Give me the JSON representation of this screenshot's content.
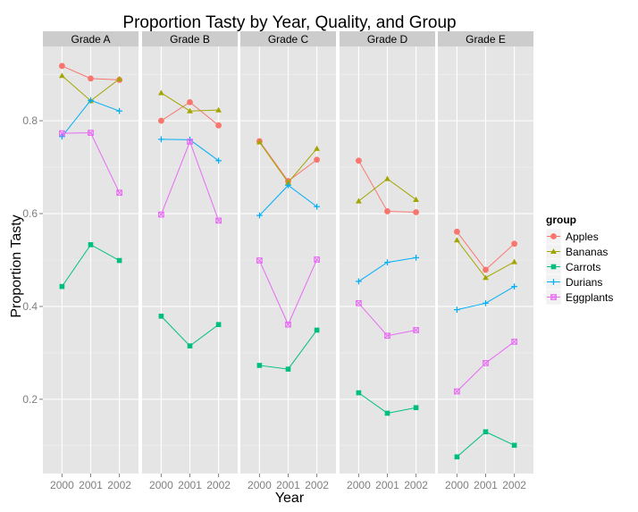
{
  "chart_data": {
    "type": "line",
    "title": "Proportion Tasty by Year, Quality, and Group",
    "xlabel": "Year",
    "ylabel": "Proportion Tasty",
    "x": [
      "2000",
      "2001",
      "2002"
    ],
    "ylim": [
      0.04,
      0.96
    ],
    "yticks": [
      0.2,
      0.4,
      0.6,
      0.8
    ],
    "ytick_labels": [
      "0.2",
      "0.4",
      "0.6",
      "0.8"
    ],
    "grid": true,
    "legend": {
      "title": "group",
      "position": "right"
    },
    "facets": [
      "Grade A",
      "Grade B",
      "Grade C",
      "Grade D",
      "Grade E"
    ],
    "series": [
      {
        "name": "Apples",
        "color": "#F8766D",
        "marker": "circle",
        "values": [
          [
            0.918,
            0.891,
            0.888
          ],
          [
            0.8,
            0.84,
            0.79
          ],
          [
            0.756,
            0.67,
            0.716
          ],
          [
            0.714,
            0.605,
            0.603
          ],
          [
            0.561,
            0.479,
            0.535
          ]
        ]
      },
      {
        "name": "Bananas",
        "color": "#A3A500",
        "marker": "triangle",
        "values": [
          [
            0.897,
            0.843,
            0.89
          ],
          [
            0.86,
            0.821,
            0.823
          ],
          [
            0.754,
            0.667,
            0.74
          ],
          [
            0.627,
            0.675,
            0.63
          ],
          [
            0.543,
            0.462,
            0.496
          ]
        ]
      },
      {
        "name": "Carrots",
        "color": "#00BF7D",
        "marker": "square",
        "values": [
          [
            0.443,
            0.533,
            0.499
          ],
          [
            0.379,
            0.315,
            0.361
          ],
          [
            0.273,
            0.265,
            0.349
          ],
          [
            0.214,
            0.17,
            0.182
          ],
          [
            0.076,
            0.13,
            0.101
          ]
        ]
      },
      {
        "name": "Durians",
        "color": "#00B0F6",
        "marker": "plus",
        "values": [
          [
            0.766,
            0.844,
            0.821
          ],
          [
            0.76,
            0.759,
            0.714
          ],
          [
            0.596,
            0.661,
            0.615
          ],
          [
            0.454,
            0.495,
            0.505
          ],
          [
            0.393,
            0.407,
            0.443
          ]
        ]
      },
      {
        "name": "Eggplants",
        "color": "#E76BF3",
        "marker": "boxcross",
        "values": [
          [
            0.773,
            0.774,
            0.645
          ],
          [
            0.598,
            0.755,
            0.585
          ],
          [
            0.499,
            0.361,
            0.501
          ],
          [
            0.407,
            0.337,
            0.349
          ],
          [
            0.217,
            0.278,
            0.324
          ]
        ]
      }
    ]
  }
}
